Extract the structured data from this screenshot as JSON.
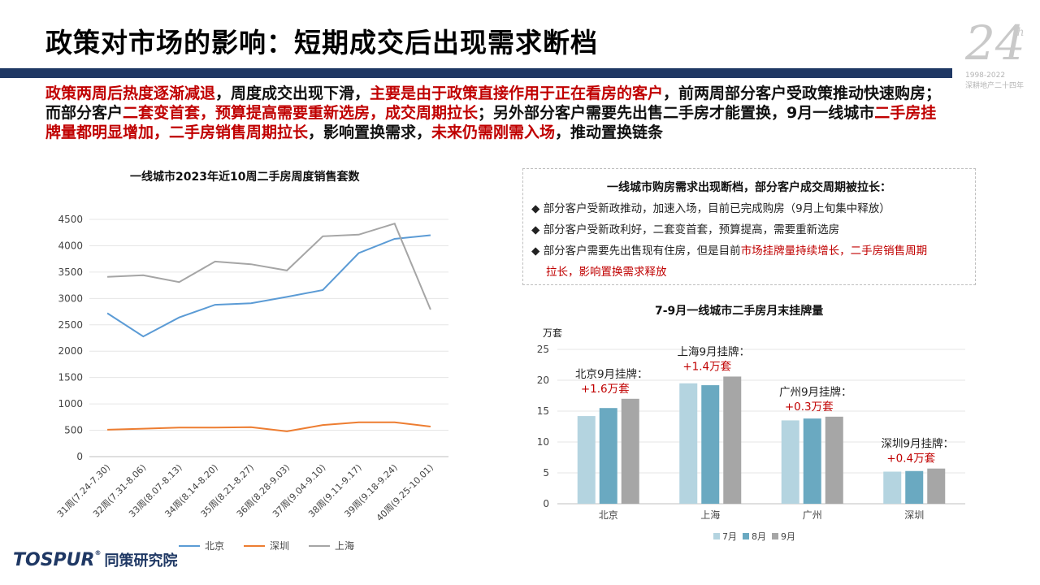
{
  "title": "政策对市场的影响：短期成交后出现需求断档",
  "logo": {
    "big": "24",
    "th": "th",
    "years": "1998-2022",
    "sub": "深耕地产二十四年"
  },
  "intro": [
    {
      "text": "政策两周后热度逐渐减退",
      "red": true
    },
    {
      "text": "，周度成交出现下滑，",
      "red": false
    },
    {
      "text": "主要是由于政策直接作用于正在看房的客户",
      "red": true
    },
    {
      "text": "，前两周部分客户受政策推动快速购房；而部分客户",
      "red": false
    },
    {
      "text": "二套变首套，预算提高需要重新选房，成交周期拉长",
      "red": true
    },
    {
      "text": "；另外部分客户需要先出售二手房才能置换，9月一线城市",
      "red": false
    },
    {
      "text": "二手房挂牌量都明显增加，二手房销售周期拉长",
      "red": true
    },
    {
      "text": "，影响置换需求，",
      "red": false
    },
    {
      "text": "未来仍需刚需入场",
      "red": true
    },
    {
      "text": "，推动置换链条",
      "red": false
    }
  ],
  "box": {
    "title": "一线城市购房需求出现断档，部分客户成交周期被拉长：",
    "bullet": "◆",
    "items": [
      {
        "parts": [
          {
            "text": "部分客户受新政推动，加速入场，目前已完成购房（9月上旬集中释放）",
            "red": false
          }
        ]
      },
      {
        "parts": [
          {
            "text": "部分客户受新政利好，二套变首套，预算提高，需要重新选房",
            "red": false
          }
        ]
      },
      {
        "parts": [
          {
            "text": "部分客户需要先出售现有住房，但是目前",
            "red": false
          },
          {
            "text": "市场挂牌量持续增长，二手房销售周期",
            "red": true
          }
        ]
      }
    ],
    "continuation": "拉长，影响置换需求释放"
  },
  "brand": {
    "name": "TOSPUR",
    "reg": "®",
    "cn": "同策研究院"
  },
  "chart_data": [
    {
      "type": "line",
      "title": "一线城市2023年近10周二手房周度销售套数",
      "categories": [
        "31周(7.24-7.30)",
        "32周(7.31-8.06)",
        "33周(8.07-8.13)",
        "34周(8.14-8.20)",
        "35周(8.21-8.27)",
        "36周(8.28-9.03)",
        "37周(9.04-9.10)",
        "38周(9.11-9.17)",
        "39周(9.18-9.24)",
        "40周(9.25-10.01)"
      ],
      "series": [
        {
          "name": "北京",
          "color": "#5b9bd5",
          "values": [
            2720,
            2280,
            2640,
            2880,
            2910,
            3030,
            3160,
            3860,
            4130,
            4200
          ]
        },
        {
          "name": "深圳",
          "color": "#ed7d31",
          "values": [
            510,
            530,
            550,
            550,
            560,
            480,
            600,
            650,
            650,
            570
          ]
        },
        {
          "name": "上海",
          "color": "#a5a5a5",
          "values": [
            3410,
            3440,
            3310,
            3700,
            3650,
            3530,
            4180,
            4210,
            4420,
            2790
          ]
        }
      ],
      "ylim": [
        0,
        4500
      ],
      "yticks": [
        0,
        500,
        1000,
        1500,
        2000,
        2500,
        3000,
        3500,
        4000,
        4500
      ],
      "grid": true,
      "legend": "bottom"
    },
    {
      "type": "bar",
      "title": "7-9月一线城市二手房月末挂牌量",
      "ylabel": "万套",
      "categories": [
        "北京",
        "上海",
        "广州",
        "深圳"
      ],
      "series": [
        {
          "name": "7月",
          "color": "#b4d4e0",
          "values": [
            14.2,
            19.5,
            13.5,
            5.2
          ]
        },
        {
          "name": "8月",
          "color": "#6aa9c1",
          "values": [
            15.5,
            19.2,
            13.8,
            5.3
          ]
        },
        {
          "name": "9月",
          "color": "#a6a6a6",
          "values": [
            17.0,
            20.6,
            14.1,
            5.7
          ]
        }
      ],
      "ylim": [
        0,
        25
      ],
      "yticks": [
        0,
        5,
        10,
        15,
        20,
        25
      ],
      "grid": true,
      "legend": "bottom",
      "annotations": [
        {
          "label": "北京9月挂牌：",
          "value": "+1.6万套"
        },
        {
          "label": "上海9月挂牌：",
          "value": "+1.4万套"
        },
        {
          "label": "广州9月挂牌：",
          "value": "+0.3万套"
        },
        {
          "label": "深圳9月挂牌：",
          "value": "+0.4万套"
        }
      ]
    }
  ]
}
